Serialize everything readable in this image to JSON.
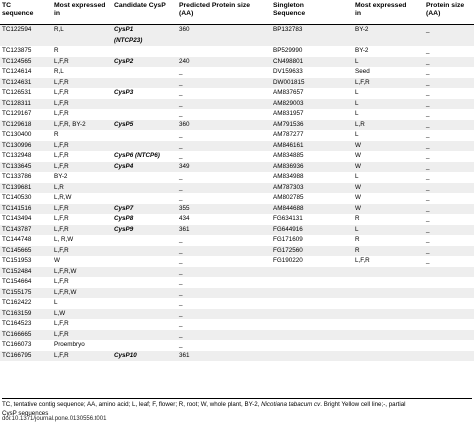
{
  "headers": [
    [
      "TC",
      "sequence"
    ],
    [
      "Most expressed",
      "in"
    ],
    [
      "Candidate CysP",
      ""
    ],
    [
      "Predicted Protein size",
      "(AA)"
    ],
    [
      "Singleton",
      "Sequence"
    ],
    [
      "Most expressed",
      "in"
    ],
    [
      "Protein size",
      "(AA)"
    ]
  ],
  "rows": [
    {
      "tc": "TC122594",
      "expr": "R,L",
      "cand": [
        "CysP1",
        "(NTCP23)"
      ],
      "size": "360",
      "single": "BP132783",
      "sexpr": "BY-2",
      "psize": "_"
    },
    {
      "tc": "TC123875",
      "expr": "R",
      "cand": [
        "",
        ""
      ],
      "size": "",
      "single": "BP529990",
      "sexpr": "BY-2",
      "psize": "_"
    },
    {
      "tc": "TC124565",
      "expr": "L,F,R",
      "cand": [
        "CysP2",
        ""
      ],
      "size": "240",
      "single": "CN498801",
      "sexpr": "L",
      "psize": "_"
    },
    {
      "tc": "TC124614",
      "expr": "R,L",
      "cand": [
        "",
        ""
      ],
      "size": "_",
      "single": "DV159633",
      "sexpr": "Seed",
      "psize": "_"
    },
    {
      "tc": "TC124631",
      "expr": "L,F,R",
      "cand": [
        "",
        ""
      ],
      "size": "_",
      "single": "DW001815",
      "sexpr": "L,F,R",
      "psize": "_"
    },
    {
      "tc": "TC126531",
      "expr": "L,F,R",
      "cand": [
        "CysP3",
        ""
      ],
      "size": "_",
      "single": "AM837657",
      "sexpr": "L",
      "psize": "_"
    },
    {
      "tc": "TC128311",
      "expr": "L,F,R",
      "cand": [
        "",
        ""
      ],
      "size": "_",
      "single": "AM829003",
      "sexpr": "L",
      "psize": "_"
    },
    {
      "tc": "TC129167",
      "expr": "L,F,R",
      "cand": [
        "",
        ""
      ],
      "size": "_",
      "single": "AM831957",
      "sexpr": "L",
      "psize": "_"
    },
    {
      "tc": "TC129618",
      "expr": "L,F,R, BY-2",
      "cand": [
        "CysP5",
        ""
      ],
      "size": "360",
      "single": "AM791536",
      "sexpr": "L,R",
      "psize": "_"
    },
    {
      "tc": "TC130400",
      "expr": "R",
      "cand": [
        "",
        ""
      ],
      "size": "_",
      "single": "AM787277",
      "sexpr": "L",
      "psize": "_"
    },
    {
      "tc": "TC130996",
      "expr": "L,F,R",
      "cand": [
        "",
        ""
      ],
      "size": "_",
      "single": "AM846161",
      "sexpr": "W",
      "psize": "_"
    },
    {
      "tc": "TC132948",
      "expr": "L,F,R",
      "cand": [
        "CysP6 (NTCP6)",
        ""
      ],
      "size": "_",
      "single": "AM834885",
      "sexpr": "W",
      "psize": "_"
    },
    {
      "tc": "TC133645",
      "expr": "L,F,R",
      "cand": [
        "CysP4",
        ""
      ],
      "size": "349",
      "single": "AM836936",
      "sexpr": "W",
      "psize": "_"
    },
    {
      "tc": "TC133786",
      "expr": "BY-2",
      "cand": [
        "",
        ""
      ],
      "size": "_",
      "single": "AM834988",
      "sexpr": "L",
      "psize": "_"
    },
    {
      "tc": "TC139681",
      "expr": "L,R",
      "cand": [
        "",
        ""
      ],
      "size": "_",
      "single": "AM787303",
      "sexpr": "W",
      "psize": "_"
    },
    {
      "tc": "TC140530",
      "expr": "L,R,W",
      "cand": [
        "",
        ""
      ],
      "size": "_",
      "single": "AM802785",
      "sexpr": "W",
      "psize": "_"
    },
    {
      "tc": "TC141516",
      "expr": "L,F,R",
      "cand": [
        "CysP7",
        ""
      ],
      "size": "355",
      "single": "AM844688",
      "sexpr": "W",
      "psize": "_"
    },
    {
      "tc": "TC143494",
      "expr": "L,F,R",
      "cand": [
        "CysP8",
        ""
      ],
      "size": "434",
      "single": "FG634131",
      "sexpr": "R",
      "psize": "_"
    },
    {
      "tc": "TC143787",
      "expr": "L,F,R",
      "cand": [
        "CysP9",
        ""
      ],
      "size": "361",
      "single": "FG644916",
      "sexpr": "L",
      "psize": "_"
    },
    {
      "tc": "TC144748",
      "expr": "L, R,W",
      "cand": [
        "",
        ""
      ],
      "size": "_",
      "single": "FG171609",
      "sexpr": "R",
      "psize": "_"
    },
    {
      "tc": "TC145665",
      "expr": "L,F,R",
      "cand": [
        "",
        ""
      ],
      "size": "_",
      "single": "FG172560",
      "sexpr": "R",
      "psize": "_"
    },
    {
      "tc": "TC151953",
      "expr": "W",
      "cand": [
        "",
        ""
      ],
      "size": "_",
      "single": "FG190220",
      "sexpr": "L,F,R",
      "psize": "_"
    },
    {
      "tc": "TC152484",
      "expr": "L,F,R,W",
      "cand": [
        "",
        ""
      ],
      "size": "_",
      "single": "",
      "sexpr": "",
      "psize": ""
    },
    {
      "tc": "TC154664",
      "expr": "L,F,R",
      "cand": [
        "",
        ""
      ],
      "size": "_",
      "single": "",
      "sexpr": "",
      "psize": ""
    },
    {
      "tc": "TC155175",
      "expr": "L,F,R,W",
      "cand": [
        "",
        ""
      ],
      "size": "_",
      "single": "",
      "sexpr": "",
      "psize": ""
    },
    {
      "tc": "TC162422",
      "expr": "L",
      "cand": [
        "",
        ""
      ],
      "size": "_",
      "single": "",
      "sexpr": "",
      "psize": ""
    },
    {
      "tc": "TC163159",
      "expr": "L,W",
      "cand": [
        "",
        ""
      ],
      "size": "_",
      "single": "",
      "sexpr": "",
      "psize": ""
    },
    {
      "tc": "TC164523",
      "expr": "L,F,R",
      "cand": [
        "",
        ""
      ],
      "size": "_",
      "single": "",
      "sexpr": "",
      "psize": ""
    },
    {
      "tc": "TC166665",
      "expr": "L,F,R",
      "cand": [
        "",
        ""
      ],
      "size": "_",
      "single": "",
      "sexpr": "",
      "psize": ""
    },
    {
      "tc": "TC166073",
      "expr": "Proembryo",
      "cand": [
        "",
        ""
      ],
      "size": "_",
      "single": "",
      "sexpr": "",
      "psize": ""
    },
    {
      "tc": "TC166795",
      "expr": "L,F,R",
      "cand": [
        "CysP10",
        ""
      ],
      "size": "361",
      "single": "",
      "sexpr": "",
      "psize": ""
    }
  ],
  "footnote": {
    "part1": "TC, tentative contig sequence; AA, amino acid; L, leaf; F, flower; R, root; W, whole plant, BY-2, ",
    "species": "Nicotiana tabacum cv",
    "part2": ". Bright Yellow cell line;-, partial",
    "line2": "CysP sequences"
  },
  "doi": "doi:10.1371/journal.pone.0130556.t001",
  "colors": {
    "shade": "#eeeeee",
    "rule": "#000000"
  }
}
